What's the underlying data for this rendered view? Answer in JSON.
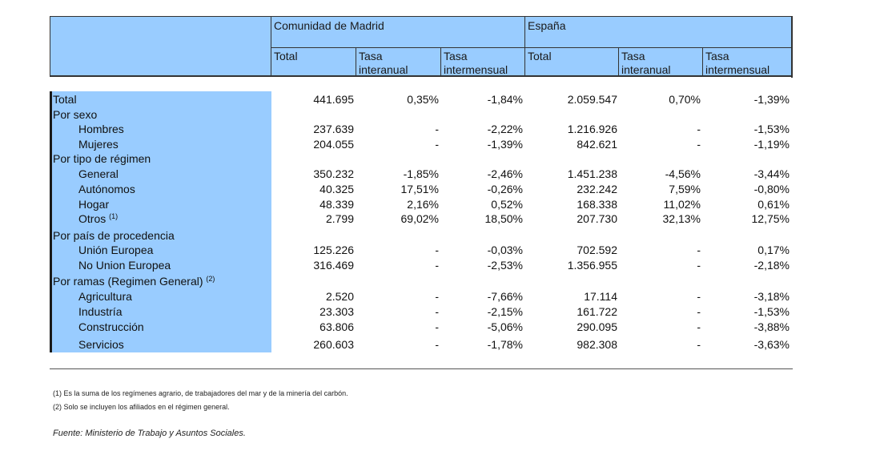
{
  "header": {
    "group_madrid": "Comunidad de Madrid",
    "group_espana": "España",
    "col_total": "Total",
    "col_interanual_1": "Tasa",
    "col_interanual_2": "interanual",
    "col_intermensual_1": "Tasa",
    "col_intermensual_2": "intermensual"
  },
  "rows": [
    {
      "label": "Total",
      "sup": "",
      "indent": false,
      "values": [
        "441.695",
        "0,35%",
        "-1,84%",
        "2.059.547",
        "0,70%",
        "-1,39%"
      ]
    },
    {
      "label": "Por sexo",
      "sup": "",
      "indent": false,
      "values": [
        "",
        "",
        "",
        "",
        "",
        ""
      ]
    },
    {
      "label": "Hombres",
      "sup": "",
      "indent": true,
      "values": [
        "237.639",
        "-",
        "-2,22%",
        "1.216.926",
        "-",
        "-1,53%"
      ]
    },
    {
      "label": "Mujeres",
      "sup": "",
      "indent": true,
      "values": [
        "204.055",
        "-",
        "-1,39%",
        "842.621",
        "-",
        "-1,19%"
      ]
    },
    {
      "label": "Por tipo de régimen",
      "sup": "",
      "indent": false,
      "values": [
        "",
        "",
        "",
        "",
        "",
        ""
      ]
    },
    {
      "label": "General",
      "sup": "",
      "indent": true,
      "values": [
        "350.232",
        "-1,85%",
        "-2,46%",
        "1.451.238",
        "-4,56%",
        "-3,44%"
      ]
    },
    {
      "label": "Autónomos",
      "sup": "",
      "indent": true,
      "values": [
        "40.325",
        "17,51%",
        "-0,26%",
        "232.242",
        "7,59%",
        "-0,80%"
      ]
    },
    {
      "label": "Hogar",
      "sup": "",
      "indent": true,
      "values": [
        "48.339",
        "2,16%",
        "0,52%",
        "168.338",
        "11,02%",
        "0,61%"
      ]
    },
    {
      "label": "Otros",
      "sup": "(1)",
      "indent": true,
      "values": [
        "2.799",
        "69,02%",
        "18,50%",
        "207.730",
        "32,13%",
        "12,75%"
      ]
    },
    {
      "label": "Por país de procedencia",
      "sup": "",
      "indent": false,
      "values": [
        "",
        "",
        "",
        "",
        "",
        ""
      ]
    },
    {
      "label": "Unión Europea",
      "sup": "",
      "indent": true,
      "values": [
        "125.226",
        "-",
        "-0,03%",
        "702.592",
        "-",
        "0,17%"
      ]
    },
    {
      "label": "No Union Europea",
      "sup": "",
      "indent": true,
      "values": [
        "316.469",
        "-",
        "-2,53%",
        "1.356.955",
        "-",
        "-2,18%"
      ]
    },
    {
      "label": "Por ramas (Regimen General)",
      "sup": "(2)",
      "indent": false,
      "values": [
        "",
        "",
        "",
        "",
        "",
        ""
      ]
    },
    {
      "label": "Agricultura",
      "sup": "",
      "indent": true,
      "values": [
        "2.520",
        "-",
        "-7,66%",
        "17.114",
        "-",
        "-3,18%"
      ]
    },
    {
      "label": "Industría",
      "sup": "",
      "indent": true,
      "values": [
        "23.303",
        "-",
        "-2,15%",
        "161.722",
        "-",
        "-1,53%"
      ]
    },
    {
      "label": "Construcción",
      "sup": "",
      "indent": true,
      "values": [
        "63.806",
        "-",
        "-5,06%",
        "290.095",
        "-",
        "-3,88%"
      ]
    },
    {
      "label": "Servicios",
      "sup": "",
      "indent": true,
      "values": [
        "260.603",
        "-",
        "-1,78%",
        "982.308",
        "-",
        "-3,63%"
      ]
    }
  ],
  "footnotes": {
    "note1": "(1) Es la suma de los regímenes  agrario, de trabajadores del mar y de la minería del carbón.",
    "note2": "(2) Solo se incluyen los afiliados en el régimen general.",
    "source": "Fuente: Ministerio de Trabajo y Asuntos Sociales."
  },
  "colors": {
    "header_fill": "#99ccff",
    "label_fill": "#99ccff"
  }
}
